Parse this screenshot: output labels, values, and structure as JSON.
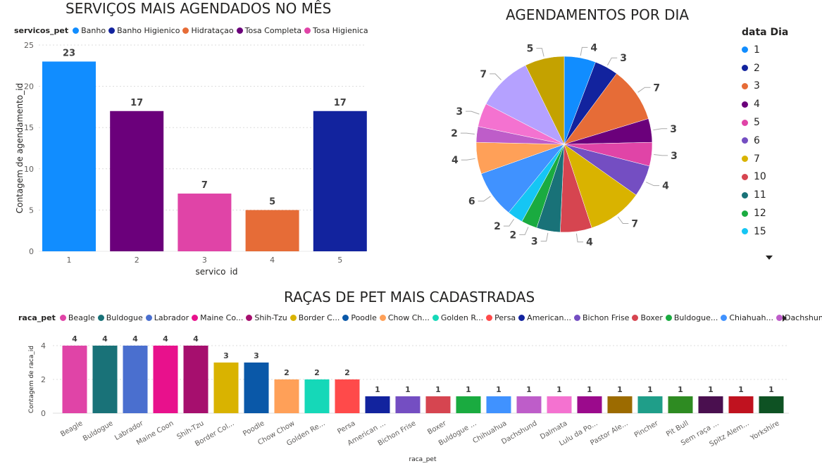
{
  "chart_data": [
    {
      "type": "bar",
      "title": "SERVIÇOS MAIS AGENDADOS NO MÊS",
      "legend_title": "servicos_pet",
      "xlabel": "servico_id",
      "ylabel": "Contagem de agendamento_id",
      "ylim": [
        0,
        25
      ],
      "yticks": [
        0,
        5,
        10,
        15,
        20,
        25
      ],
      "grid": true,
      "categories": [
        "1",
        "2",
        "3",
        "4",
        "5"
      ],
      "values": [
        23,
        17,
        7,
        5,
        17
      ],
      "colors": [
        "#118DFF",
        "#6B007B",
        "#E044A7",
        "#E66C37",
        "#12239E"
      ],
      "legend": [
        {
          "label": "Banho",
          "color": "#118DFF"
        },
        {
          "label": "Banho Higienico",
          "color": "#12239E"
        },
        {
          "label": "Hidrataçao",
          "color": "#E66C37"
        },
        {
          "label": "Tosa Completa",
          "color": "#6B007B"
        },
        {
          "label": "Tosa Higienica",
          "color": "#E044A7"
        }
      ]
    },
    {
      "type": "pie",
      "title": "AGENDAMENTOS POR DIA",
      "legend_title": "data Dia",
      "slices": [
        {
          "day": "1",
          "value": 4,
          "color": "#118DFF"
        },
        {
          "day": "2",
          "value": 3,
          "color": "#12239E"
        },
        {
          "day": "3",
          "value": 7,
          "color": "#E66C37"
        },
        {
          "day": "4",
          "value": 3,
          "color": "#6B007B"
        },
        {
          "day": "5",
          "value": 3,
          "color": "#E044A7"
        },
        {
          "day": "6",
          "value": 4,
          "color": "#744EC2"
        },
        {
          "day": "7",
          "value": 7,
          "color": "#D9B300"
        },
        {
          "day": "10",
          "value": 4,
          "color": "#D64550"
        },
        {
          "day": "11",
          "value": 3,
          "color": "#197278"
        },
        {
          "day": "12",
          "value": 2,
          "color": "#1AAB40"
        },
        {
          "day": "15",
          "value": 2,
          "color": "#15C6F4"
        },
        {
          "day": "",
          "value": 6,
          "color": "#4092FF"
        },
        {
          "day": "",
          "value": 4,
          "color": "#FFA058"
        },
        {
          "day": "",
          "value": 2,
          "color": "#BE5DC9"
        },
        {
          "day": "",
          "value": 3,
          "color": "#F472D0"
        },
        {
          "day": "",
          "value": 7,
          "color": "#B5A1FF"
        },
        {
          "day": "",
          "value": 5,
          "color": "#C4A200"
        }
      ],
      "legend_visible_days": [
        "1",
        "2",
        "3",
        "4",
        "5",
        "6",
        "7",
        "10",
        "11",
        "12",
        "15"
      ]
    },
    {
      "type": "bar",
      "title": "RAÇAS DE PET MAIS CADASTRADAS",
      "legend_title": "raca_pet",
      "xlabel": "raca_pet",
      "ylabel": "Contagem de raca_id",
      "ylim": [
        0,
        4
      ],
      "yticks": [
        0,
        2,
        4
      ],
      "grid": true,
      "categories": [
        "Beagle",
        "Buldogue",
        "Labrador",
        "Maine Coon",
        "Shih-Tzu",
        "Border Col...",
        "Poodle",
        "Chow Chow",
        "Golden Re...",
        "Persa",
        "American ...",
        "Bichon Frise",
        "Boxer",
        "Buldogue ...",
        "Chihuahua",
        "Dachshund",
        "Dalmata",
        "Lulu da Po...",
        "Pastor Ale...",
        "Pincher",
        "Pit Bull",
        "Sem raça ...",
        "Spitz Alem...",
        "Yorkshire"
      ],
      "values": [
        4,
        4,
        4,
        4,
        4,
        3,
        3,
        2,
        2,
        2,
        1,
        1,
        1,
        1,
        1,
        1,
        1,
        1,
        1,
        1,
        1,
        1,
        1,
        1
      ],
      "colors": [
        "#E044A7",
        "#197278",
        "#4A6FCF",
        "#E8118C",
        "#A60F6E",
        "#D9B300",
        "#0A58A8",
        "#FFA058",
        "#15D8B8",
        "#FF4A4A",
        "#12239E",
        "#744EC2",
        "#D64550",
        "#1AAB40",
        "#4092FF",
        "#BE5DC9",
        "#F472D0",
        "#9B0A8C",
        "#9C6B00",
        "#1F9E89",
        "#2E8B22",
        "#4A0F4F",
        "#C0121F",
        "#0E5223"
      ],
      "legend": [
        {
          "label": "Beagle",
          "color": "#E044A7"
        },
        {
          "label": "Buldogue",
          "color": "#197278"
        },
        {
          "label": "Labrador",
          "color": "#4A6FCF"
        },
        {
          "label": "Maine Co...",
          "color": "#E8118C"
        },
        {
          "label": "Shih-Tzu",
          "color": "#A60F6E"
        },
        {
          "label": "Border C...",
          "color": "#D9B300"
        },
        {
          "label": "Poodle",
          "color": "#0A58A8"
        },
        {
          "label": "Chow Ch...",
          "color": "#FFA058"
        },
        {
          "label": "Golden R...",
          "color": "#15D8B8"
        },
        {
          "label": "Persa",
          "color": "#FF4A4A"
        },
        {
          "label": "American...",
          "color": "#12239E"
        },
        {
          "label": "Bichon Frise",
          "color": "#744EC2"
        },
        {
          "label": "Boxer",
          "color": "#D64550"
        },
        {
          "label": "Buldogue...",
          "color": "#1AAB40"
        },
        {
          "label": "Chiahuah...",
          "color": "#4092FF"
        },
        {
          "label": "Dachshund",
          "color": "#BE5DC9"
        }
      ]
    }
  ]
}
